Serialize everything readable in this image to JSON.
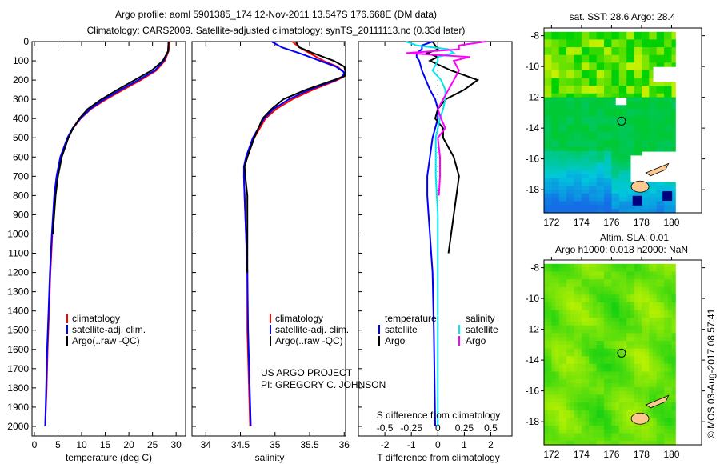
{
  "title": {
    "line1": "Argo profile: aoml 5901385_174 12-Nov-2011 13.547S 176.668E (DM data)",
    "line2": "Climatology: CARS2009. Satellite-adjusted climatology: synTS_20111113.nc (0.33d later)"
  },
  "credit": {
    "line1": "US ARGO PROJECT",
    "line2": "PI: GREGORY C. JOHNSON"
  },
  "timestamp": "©IMOS 03-Aug-2017 08:57:41",
  "colors": {
    "climatology": "#ff0000",
    "satellite": "#0000ff",
    "argo": "#000000",
    "sal_satellite": "#00e5ee",
    "sal_argo": "#ff00ff"
  },
  "chart_data": [
    {
      "type": "line",
      "title": "",
      "xlabel": "temperature (deg C)",
      "ylabel": "",
      "xlim": [
        -0.5,
        32
      ],
      "ylim": [
        2050,
        0
      ],
      "xticks": [
        "0",
        "5",
        "10",
        "15",
        "20",
        "25",
        "30"
      ],
      "yticks": [
        "0",
        "100",
        "200",
        "300",
        "400",
        "500",
        "600",
        "700",
        "800",
        "900",
        "1000",
        "1100",
        "1200",
        "1300",
        "1400",
        "1500",
        "1600",
        "1700",
        "1800",
        "1900",
        "2000"
      ],
      "legend": [
        "climatology",
        "satellite-adj. clim.",
        "Argo(..raw -QC)"
      ],
      "depth": [
        0,
        50,
        100,
        150,
        200,
        250,
        300,
        350,
        400,
        450,
        500,
        600,
        700,
        800,
        1000,
        1200,
        1400,
        1600,
        1800,
        2000
      ],
      "series": [
        {
          "name": "climatology",
          "values": [
            28.6,
            28.4,
            27.6,
            25.8,
            22.5,
            18.8,
            15.2,
            12.0,
            9.8,
            8.2,
            7.1,
            5.6,
            4.8,
            4.3,
            3.8,
            3.4,
            3.1,
            2.8,
            2.6,
            2.3
          ]
        },
        {
          "name": "satellite-adj. clim.",
          "values": [
            28.4,
            28.3,
            27.4,
            25.5,
            22.0,
            18.3,
            14.8,
            11.8,
            9.7,
            8.1,
            7.0,
            5.5,
            4.7,
            4.2,
            3.7,
            3.3,
            3.0,
            2.7,
            2.5,
            2.3
          ]
        },
        {
          "name": "Argo(..raw -QC)",
          "values": [
            28.4,
            28.3,
            27.2,
            24.8,
            21.2,
            17.6,
            14.2,
            11.3,
            9.5,
            8.2,
            7.2,
            5.8,
            5.0,
            4.5,
            3.9
          ]
        }
      ]
    },
    {
      "type": "line",
      "xlabel": "salinity",
      "xlim": [
        33.8,
        36.02
      ],
      "ylim": [
        2050,
        0
      ],
      "xticks": [
        "34",
        "34.5",
        "35",
        "35.5",
        "36"
      ],
      "legend": [
        "climatology",
        "satellite-adj. clim.",
        "Argo(..raw -QC)"
      ],
      "depth": [
        0,
        30,
        60,
        100,
        130,
        160,
        180,
        200,
        250,
        300,
        350,
        400,
        500,
        600,
        650,
        700,
        800,
        1000,
        1200,
        1500,
        2000
      ],
      "series": [
        {
          "name": "climatology",
          "values": [
            35.25,
            35.35,
            35.5,
            35.7,
            35.9,
            36.0,
            36.0,
            35.9,
            35.55,
            35.25,
            35.02,
            34.86,
            34.7,
            34.6,
            34.56,
            34.55,
            34.56,
            34.58,
            34.6,
            34.6,
            34.64
          ]
        },
        {
          "name": "satellite-adj. clim.",
          "values": [
            34.95,
            35.1,
            35.35,
            35.65,
            35.88,
            36.0,
            35.98,
            35.88,
            35.5,
            35.2,
            34.98,
            34.84,
            34.68,
            34.58,
            34.55,
            34.55,
            34.56,
            34.58,
            34.6,
            34.61,
            34.65
          ]
        },
        {
          "name": "Argo(..raw -QC)",
          "values": [
            35.3,
            35.35,
            35.55,
            35.85,
            36.0,
            36.02,
            36.0,
            35.85,
            35.45,
            35.12,
            34.95,
            34.82,
            34.7,
            34.6,
            34.56,
            34.57,
            34.6,
            34.6,
            34.6
          ]
        }
      ]
    },
    {
      "type": "line",
      "xlabel": "T difference from climatology",
      "x2label": "S difference from climatology",
      "xlim": [
        -3,
        2.8
      ],
      "x2lim": [
        -0.75,
        0.7
      ],
      "ylim": [
        2050,
        0
      ],
      "xticks": [
        "-2",
        "-1",
        "0",
        "1",
        "2"
      ],
      "x2ticks": [
        "-0.5",
        "-0.25",
        "0",
        "0.25",
        "0.5"
      ],
      "legend_temperature": {
        "title": "temperature",
        "items": [
          "satellite",
          "Argo"
        ]
      },
      "legend_salinity": {
        "title": "salinity",
        "items": [
          "satellite",
          "Argo"
        ]
      },
      "depth": [
        0,
        20,
        40,
        60,
        80,
        100,
        150,
        200,
        250,
        300,
        350,
        400,
        450,
        500,
        600,
        700,
        800,
        900,
        1000,
        1100,
        1200,
        1500,
        2000
      ],
      "series": [
        {
          "name": "temperature satellite",
          "axis": "T",
          "values": [
            -0.2,
            -0.6,
            -0.6,
            -0.8,
            -0.8,
            -0.7,
            -0.6,
            -0.45,
            -0.3,
            -0.1,
            0.0,
            0.0,
            -0.1,
            -0.2,
            -0.3,
            -0.4,
            -0.4,
            -0.35,
            -0.3,
            -0.25,
            -0.2,
            -0.15,
            -0.1
          ]
        },
        {
          "name": "temperature Argo",
          "axis": "T",
          "values": [
            -0.2,
            -0.1,
            0.0,
            -0.4,
            0.0,
            -0.3,
            0.5,
            1.5,
            1.0,
            0.3,
            0.0,
            -0.1,
            0.2,
            0.2,
            0.6,
            0.8,
            0.7,
            0.6,
            0.5,
            0.4
          ]
        },
        {
          "name": "salinity satellite",
          "axis": "S",
          "values": [
            -0.3,
            -0.2,
            0.1,
            0.15,
            0.0,
            0.0,
            -0.05,
            0.03,
            0.07,
            0.07,
            0.05,
            0.02,
            0.0,
            -0.02,
            -0.02,
            -0.02,
            -0.01,
            0.0,
            0.0,
            0.0,
            0.0,
            0.0,
            0.0
          ]
        },
        {
          "name": "salinity Argo",
          "axis": "S",
          "values": [
            0.45,
            0.2,
            0.2,
            -0.3,
            0.3,
            0.15,
            0.2,
            0.15,
            0.1,
            0.05,
            0.0,
            0.03,
            0.07,
            0.0,
            0.02,
            0.02,
            0.01
          ]
        }
      ]
    },
    {
      "type": "heatmap",
      "title": "sat. SST: 28.6 Argo: 28.4",
      "xticks": [
        "172",
        "174",
        "176",
        "178",
        "180"
      ],
      "yticks": [
        "-8",
        "-10",
        "-12",
        "-14",
        "-16",
        "-18"
      ],
      "xlim": [
        171.5,
        182
      ],
      "ylim": [
        -19.5,
        -7.5
      ],
      "argo_position": {
        "lon": 176.668,
        "lat": -13.547
      }
    },
    {
      "type": "heatmap",
      "title": "Altim. SLA: 0.01",
      "subtitle": "Argo h1000: 0.018 h2000: NaN",
      "xticks": [
        "172",
        "174",
        "176",
        "178",
        "180"
      ],
      "yticks": [
        "-8",
        "-10",
        "-12",
        "-14",
        "-16",
        "-18"
      ],
      "xlim": [
        171.5,
        182
      ],
      "ylim": [
        -19.5,
        -7.5
      ],
      "argo_position": {
        "lon": 176.668,
        "lat": -13.547
      }
    }
  ]
}
